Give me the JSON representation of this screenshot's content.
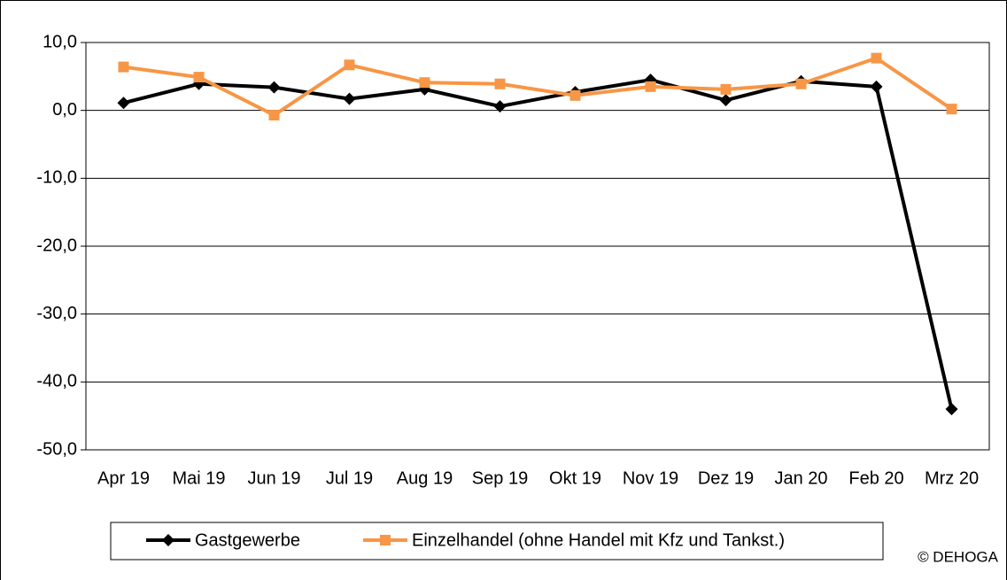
{
  "chart_data": {
    "type": "line",
    "categories": [
      "Apr 19",
      "Mai 19",
      "Jun 19",
      "Jul 19",
      "Aug 19",
      "Sep 19",
      "Okt 19",
      "Nov 19",
      "Dez 19",
      "Jan 20",
      "Feb 20",
      "Mrz 20"
    ],
    "series": [
      {
        "name": "Gastgewerbe",
        "color": "#000000",
        "marker": "diamond",
        "values": [
          1.1,
          3.9,
          3.4,
          1.7,
          3.1,
          0.6,
          2.7,
          4.5,
          1.5,
          4.3,
          3.5,
          -44.0
        ]
      },
      {
        "name": "Einzelhandel (ohne Handel mit Kfz und Tankst.)",
        "color": "#f79646",
        "marker": "square",
        "values": [
          6.4,
          4.9,
          -0.7,
          6.7,
          4.1,
          3.9,
          2.2,
          3.5,
          3.1,
          3.9,
          7.7,
          0.2
        ]
      }
    ],
    "ylim": [
      -50,
      10
    ],
    "yticks": [
      {
        "value": -50,
        "label": "-50,0"
      },
      {
        "value": -40,
        "label": "-40,0"
      },
      {
        "value": -30,
        "label": "-30,0"
      },
      {
        "value": -20,
        "label": "-20,0"
      },
      {
        "value": -10,
        "label": "-10,0"
      },
      {
        "value": 0,
        "label": "0,0"
      },
      {
        "value": 10,
        "label": "10,0"
      }
    ],
    "grid": true,
    "legend": "bottom",
    "source": "© DEHOGA"
  }
}
